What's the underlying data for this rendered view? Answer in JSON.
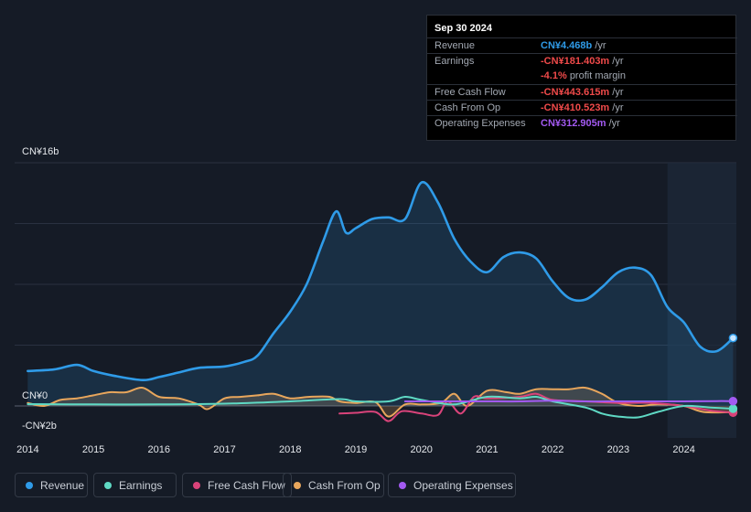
{
  "tooltip": {
    "date": "Sep 30 2024",
    "rows": [
      {
        "label": "Revenue",
        "value": "CN¥4.468b",
        "unit": "/yr",
        "color": "#2f9be8"
      },
      {
        "label": "Earnings",
        "value": "-CN¥181.403m",
        "unit": "/yr",
        "color": "#f04a4a"
      },
      {
        "label": "",
        "value": "-4.1%",
        "unit": "profit margin",
        "color": "#f04a4a"
      },
      {
        "label": "Free Cash Flow",
        "value": "-CN¥443.615m",
        "unit": "/yr",
        "color": "#f04a4a"
      },
      {
        "label": "Cash From Op",
        "value": "-CN¥410.523m",
        "unit": "/yr",
        "color": "#f04a4a"
      },
      {
        "label": "Operating Expenses",
        "value": "CN¥312.905m",
        "unit": "/yr",
        "color": "#a35af2"
      }
    ]
  },
  "legend": [
    {
      "label": "Revenue",
      "color": "#2f9be8"
    },
    {
      "label": "Earnings",
      "color": "#5fd9c4"
    },
    {
      "label": "Free Cash Flow",
      "color": "#d9437a"
    },
    {
      "label": "Cash From Op",
      "color": "#e8a65c"
    },
    {
      "label": "Operating Expenses",
      "color": "#a35af2"
    }
  ],
  "chart_data": {
    "type": "line",
    "title": "",
    "y_top_label": "CN¥16b",
    "y_zero_label": "CN¥0",
    "y_bottom_label": "-CN¥2b",
    "ylim": [
      -2,
      16
    ],
    "xlim": [
      2013.8,
      2024.8
    ],
    "x_ticks": [
      2014,
      2015,
      2016,
      2017,
      2018,
      2019,
      2020,
      2021,
      2022,
      2023,
      2024
    ],
    "x_tick_labels": [
      "2014",
      "2015",
      "2016",
      "2017",
      "2018",
      "2019",
      "2020",
      "2021",
      "2022",
      "2023",
      "2024"
    ],
    "forecast_start": 2023.75,
    "series": [
      {
        "name": "Revenue",
        "color": "#2f9be8",
        "area": true,
        "points": [
          [
            2014.0,
            2.3
          ],
          [
            2014.4,
            2.4
          ],
          [
            2014.75,
            2.7
          ],
          [
            2015.0,
            2.3
          ],
          [
            2015.3,
            2.0
          ],
          [
            2015.75,
            1.7
          ],
          [
            2016.0,
            1.9
          ],
          [
            2016.3,
            2.2
          ],
          [
            2016.6,
            2.5
          ],
          [
            2017.0,
            2.6
          ],
          [
            2017.3,
            2.9
          ],
          [
            2017.5,
            3.3
          ],
          [
            2017.75,
            4.8
          ],
          [
            2018.0,
            6.2
          ],
          [
            2018.25,
            8.0
          ],
          [
            2018.5,
            10.8
          ],
          [
            2018.7,
            12.8
          ],
          [
            2018.85,
            11.4
          ],
          [
            2019.0,
            11.7
          ],
          [
            2019.25,
            12.3
          ],
          [
            2019.5,
            12.4
          ],
          [
            2019.75,
            12.3
          ],
          [
            2020.0,
            14.7
          ],
          [
            2020.25,
            13.4
          ],
          [
            2020.5,
            11.0
          ],
          [
            2020.75,
            9.5
          ],
          [
            2021.0,
            8.8
          ],
          [
            2021.25,
            9.8
          ],
          [
            2021.5,
            10.1
          ],
          [
            2021.75,
            9.7
          ],
          [
            2022.0,
            8.2
          ],
          [
            2022.25,
            7.1
          ],
          [
            2022.5,
            7.0
          ],
          [
            2022.75,
            7.8
          ],
          [
            2023.0,
            8.8
          ],
          [
            2023.25,
            9.1
          ],
          [
            2023.5,
            8.6
          ],
          [
            2023.75,
            6.5
          ],
          [
            2024.0,
            5.5
          ],
          [
            2024.25,
            3.9
          ],
          [
            2024.5,
            3.6
          ],
          [
            2024.75,
            4.468
          ]
        ]
      },
      {
        "name": "Earnings",
        "color": "#5fd9c4",
        "area": false,
        "points": [
          [
            2014.0,
            0.12
          ],
          [
            2015.0,
            0.1
          ],
          [
            2016.0,
            0.1
          ],
          [
            2017.0,
            0.15
          ],
          [
            2018.0,
            0.3
          ],
          [
            2018.75,
            0.45
          ],
          [
            2019.0,
            0.3
          ],
          [
            2019.5,
            0.3
          ],
          [
            2019.75,
            0.6
          ],
          [
            2020.0,
            0.4
          ],
          [
            2020.5,
            0.1
          ],
          [
            2021.0,
            0.6
          ],
          [
            2021.5,
            0.5
          ],
          [
            2021.75,
            0.6
          ],
          [
            2022.0,
            0.3
          ],
          [
            2022.5,
            -0.1
          ],
          [
            2022.75,
            -0.5
          ],
          [
            2023.0,
            -0.7
          ],
          [
            2023.3,
            -0.75
          ],
          [
            2023.6,
            -0.4
          ],
          [
            2024.0,
            0.0
          ],
          [
            2024.4,
            -0.1
          ],
          [
            2024.75,
            -0.18
          ]
        ]
      },
      {
        "name": "Free Cash Flow",
        "color": "#d9437a",
        "area": false,
        "points": [
          [
            2018.75,
            -0.5
          ],
          [
            2019.0,
            -0.45
          ],
          [
            2019.3,
            -0.4
          ],
          [
            2019.5,
            -1.0
          ],
          [
            2019.7,
            -0.35
          ],
          [
            2020.0,
            -0.5
          ],
          [
            2020.25,
            -0.6
          ],
          [
            2020.4,
            0.3
          ],
          [
            2020.6,
            -0.5
          ],
          [
            2020.8,
            0.6
          ],
          [
            2021.0,
            0.5
          ],
          [
            2021.5,
            0.6
          ],
          [
            2021.75,
            0.8
          ],
          [
            2022.0,
            0.4
          ],
          [
            2022.5,
            0.3
          ],
          [
            2023.0,
            0.2
          ],
          [
            2023.5,
            0.2
          ],
          [
            2024.0,
            0.0
          ],
          [
            2024.4,
            -0.3
          ],
          [
            2024.75,
            -0.44
          ]
        ]
      },
      {
        "name": "Cash From Op",
        "color": "#e8a65c",
        "area": true,
        "points": [
          [
            2014.0,
            0.2
          ],
          [
            2014.25,
            0.0
          ],
          [
            2014.5,
            0.4
          ],
          [
            2014.75,
            0.5
          ],
          [
            2015.0,
            0.7
          ],
          [
            2015.25,
            0.9
          ],
          [
            2015.5,
            0.9
          ],
          [
            2015.75,
            1.2
          ],
          [
            2016.0,
            0.6
          ],
          [
            2016.3,
            0.5
          ],
          [
            2016.6,
            0.1
          ],
          [
            2016.75,
            -0.2
          ],
          [
            2017.0,
            0.5
          ],
          [
            2017.25,
            0.6
          ],
          [
            2017.5,
            0.7
          ],
          [
            2017.75,
            0.8
          ],
          [
            2018.0,
            0.5
          ],
          [
            2018.3,
            0.6
          ],
          [
            2018.6,
            0.6
          ],
          [
            2018.75,
            0.3
          ],
          [
            2019.0,
            0.2
          ],
          [
            2019.3,
            0.25
          ],
          [
            2019.5,
            -0.7
          ],
          [
            2019.75,
            0.1
          ],
          [
            2020.0,
            0.1
          ],
          [
            2020.3,
            0.2
          ],
          [
            2020.5,
            0.8
          ],
          [
            2020.7,
            0.0
          ],
          [
            2021.0,
            1.0
          ],
          [
            2021.3,
            0.9
          ],
          [
            2021.5,
            0.8
          ],
          [
            2021.75,
            1.1
          ],
          [
            2022.0,
            1.1
          ],
          [
            2022.25,
            1.1
          ],
          [
            2022.5,
            1.2
          ],
          [
            2022.75,
            0.8
          ],
          [
            2023.0,
            0.2
          ],
          [
            2023.3,
            0.0
          ],
          [
            2023.6,
            0.1
          ],
          [
            2024.0,
            0.0
          ],
          [
            2024.3,
            -0.4
          ],
          [
            2024.75,
            -0.41
          ]
        ]
      },
      {
        "name": "Operating Expenses",
        "color": "#a35af2",
        "area": false,
        "points": [
          [
            2019.75,
            0.3
          ],
          [
            2020.0,
            0.3
          ],
          [
            2020.5,
            0.3
          ],
          [
            2021.0,
            0.3
          ],
          [
            2021.5,
            0.3
          ],
          [
            2022.0,
            0.35
          ],
          [
            2022.5,
            0.3
          ],
          [
            2023.0,
            0.3
          ],
          [
            2023.5,
            0.3
          ],
          [
            2024.0,
            0.3
          ],
          [
            2024.5,
            0.32
          ],
          [
            2024.75,
            0.313
          ]
        ]
      }
    ]
  }
}
